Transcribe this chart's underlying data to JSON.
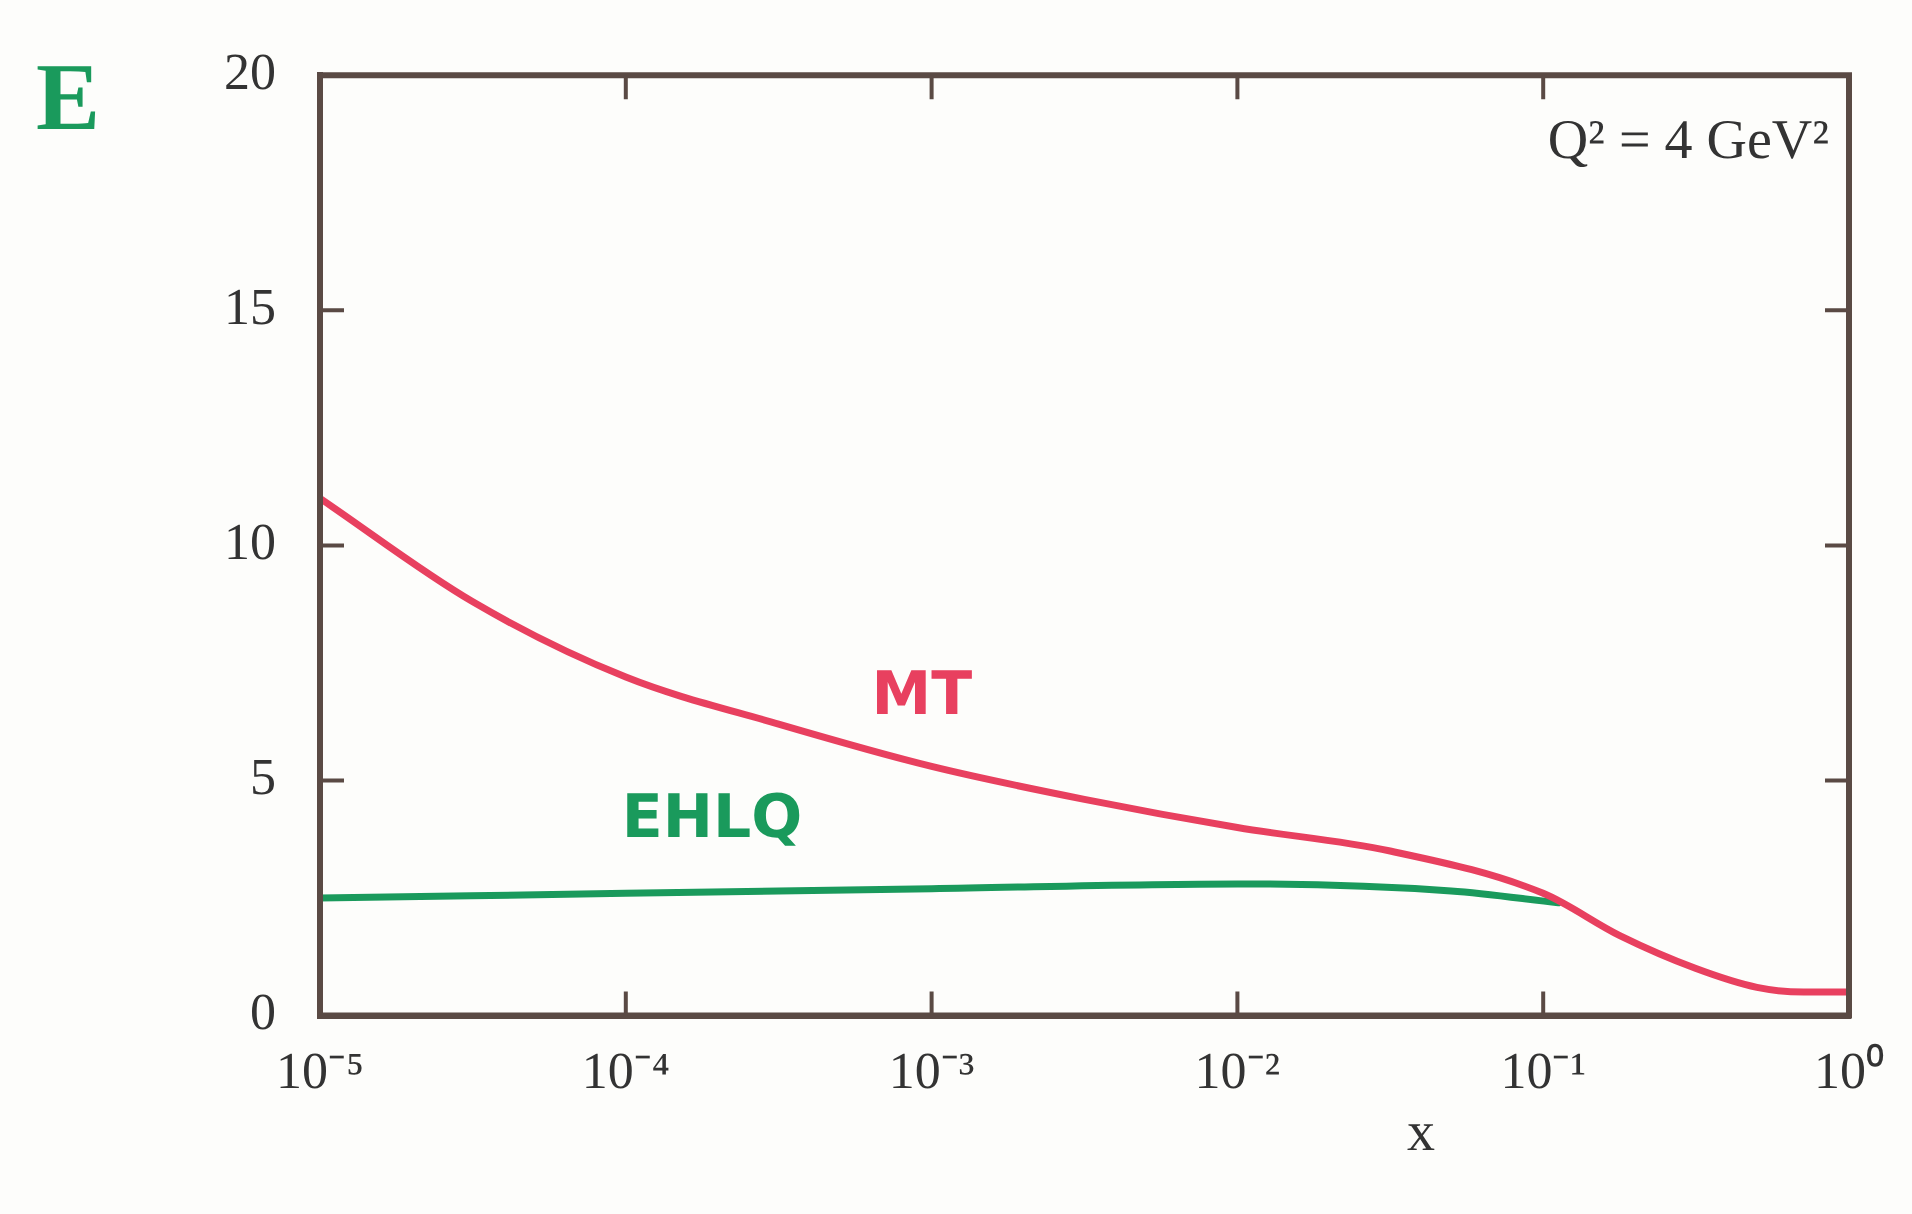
{
  "chart_data": {
    "type": "line",
    "xlabel": "x",
    "annotations": [
      "E",
      "Q² = 4 GeV²"
    ],
    "log": "x",
    "grid": false,
    "legend": false,
    "marker": "none",
    "line_style": "solid",
    "xlim": [
      1e-05,
      1
    ],
    "xticks": [
      {
        "value": 1e-05,
        "label": "10⁻⁵"
      },
      {
        "value": 0.0001,
        "label": "10⁻⁴"
      },
      {
        "value": 0.001,
        "label": "10⁻³"
      },
      {
        "value": 0.01,
        "label": "10⁻²"
      },
      {
        "value": 0.1,
        "label": "10⁻¹"
      },
      {
        "value": 1,
        "label": "10⁰"
      }
    ],
    "ylim": [
      0,
      20
    ],
    "yticks": [
      0,
      5,
      10,
      15,
      20
    ],
    "series": [
      {
        "name": "MT",
        "color": "#e8405f",
        "x": [
          1e-05,
          3.16e-05,
          0.0001,
          0.000316,
          0.001,
          0.00316,
          0.01,
          0.0316,
          0.1,
          0.178,
          0.316,
          0.5,
          0.71,
          1
        ],
        "values": [
          11,
          8.8,
          7.2,
          6.2,
          5.3,
          4.6,
          4,
          3.5,
          2.6,
          1.7,
          1,
          0.6,
          0.5,
          0.5
        ]
      },
      {
        "name": "EHLQ",
        "color": "#1a9a5c",
        "x": [
          1e-05,
          0.0001,
          0.001,
          0.01,
          0.05,
          0.112
        ],
        "values": [
          2.5,
          2.6,
          2.7,
          2.8,
          2.65,
          2.4
        ]
      }
    ]
  }
}
